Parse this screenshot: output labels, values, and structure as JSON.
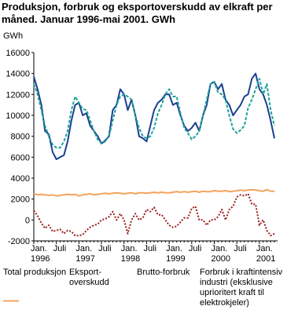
{
  "chart_data": {
    "type": "line",
    "title": "Produksjon, forbruk og eksportoverskudd av elkraft per måned. Januar 1996-mai 2001. GWh",
    "y_label": "GWh",
    "categories": [
      "Jan. 1996",
      null,
      null,
      null,
      null,
      null,
      "Juli",
      null,
      null,
      null,
      null,
      null,
      "Jan. 1997",
      null,
      null,
      null,
      null,
      null,
      "Juli",
      null,
      null,
      null,
      null,
      null,
      "Jan. 1998",
      null,
      null,
      null,
      null,
      null,
      "Juli",
      null,
      null,
      null,
      null,
      null,
      "Jan. 1999",
      null,
      null,
      null,
      null,
      null,
      "Juli",
      null,
      null,
      null,
      null,
      null,
      "Jan. 2000",
      null,
      null,
      null,
      null,
      null,
      "Juli",
      null,
      null,
      null,
      null,
      null,
      "Jan. 2001",
      null,
      null,
      null,
      null
    ],
    "ylim": [
      -2000,
      16000
    ],
    "yticks": [
      -2000,
      0,
      2000,
      4000,
      6000,
      8000,
      10000,
      12000,
      14000,
      16000
    ],
    "grid": false,
    "series": [
      {
        "name": "Total produksjon",
        "color": "#1b3f8f",
        "dash": "none",
        "values": [
          13700,
          12500,
          11000,
          8500,
          8200,
          6500,
          5800,
          6000,
          6200,
          7500,
          9500,
          11000,
          11200,
          10000,
          10200,
          9000,
          8500,
          8000,
          7300,
          7600,
          8000,
          10500,
          11000,
          12500,
          12000,
          10500,
          11500,
          10000,
          8000,
          7800,
          7500,
          9000,
          10500,
          11200,
          11500,
          12000,
          12000,
          11000,
          11200,
          10000,
          9000,
          8500,
          8800,
          9300,
          8500,
          10000,
          11000,
          13000,
          13200,
          12500,
          13000,
          11500,
          11000,
          10000,
          10500,
          11000,
          11800,
          12000,
          13500,
          14000,
          12500,
          12000,
          11000,
          9500,
          7800
        ]
      },
      {
        "name": "Eksport-overskudd",
        "color": "#9b1c1c",
        "dash": "2,2",
        "values": [
          900,
          400,
          -300,
          -800,
          -500,
          -1100,
          -1000,
          -900,
          -1300,
          -1000,
          -1100,
          -1500,
          -1500,
          -1400,
          -1000,
          -700,
          -500,
          -400,
          0,
          100,
          300,
          800,
          0,
          600,
          0,
          -1300,
          0,
          600,
          0,
          200,
          1000,
          800,
          1200,
          500,
          500,
          0,
          -500,
          -700,
          -600,
          -200,
          200,
          200,
          1100,
          1300,
          0,
          0,
          -500,
          0,
          0,
          300,
          1000,
          0,
          1000,
          1300,
          2200,
          2400,
          2300,
          2500,
          1500,
          1500,
          -500,
          0,
          -1000,
          -1500,
          -1300
        ]
      },
      {
        "name": "Brutto-forbruk",
        "color": "#1fa39a",
        "dash": "4,2",
        "values": [
          13000,
          12000,
          10500,
          9000,
          8000,
          7200,
          6900,
          6900,
          7500,
          8500,
          10500,
          11800,
          11200,
          10600,
          10500,
          9500,
          8500,
          7700,
          7300,
          7500,
          8000,
          9500,
          11000,
          11800,
          12000,
          11800,
          11500,
          10000,
          8800,
          8000,
          7800,
          8000,
          8800,
          10200,
          11000,
          12000,
          12500,
          11800,
          11800,
          10200,
          8800,
          8300,
          7700,
          8000,
          8500,
          10000,
          11500,
          13000,
          13200,
          12200,
          12000,
          11500,
          10000,
          8700,
          8300,
          8600,
          9000,
          10700,
          11500,
          12500,
          13500,
          12000,
          13000,
          10500,
          9000
        ]
      },
      {
        "name": "Forbruk i kraftintensiv industri (eksklusive uprioritert kraft til elektrokjeler)",
        "color": "#f5a35c",
        "dash": "none",
        "values": [
          2500,
          2400,
          2450,
          2400,
          2350,
          2400,
          2300,
          2350,
          2400,
          2450,
          2400,
          2450,
          2300,
          2400,
          2450,
          2500,
          2400,
          2450,
          2500,
          2550,
          2500,
          2550,
          2600,
          2550,
          2500,
          2550,
          2600,
          2500,
          2600,
          2600,
          2550,
          2600,
          2650,
          2600,
          2650,
          2600,
          2600,
          2650,
          2700,
          2650,
          2700,
          2650,
          2700,
          2750,
          2650,
          2750,
          2700,
          2700,
          2800,
          2750,
          2750,
          2800,
          2700,
          2750,
          2800,
          2850,
          2800,
          2850,
          2900,
          2850,
          2800,
          2750,
          2900,
          2750,
          2750
        ]
      }
    ]
  }
}
